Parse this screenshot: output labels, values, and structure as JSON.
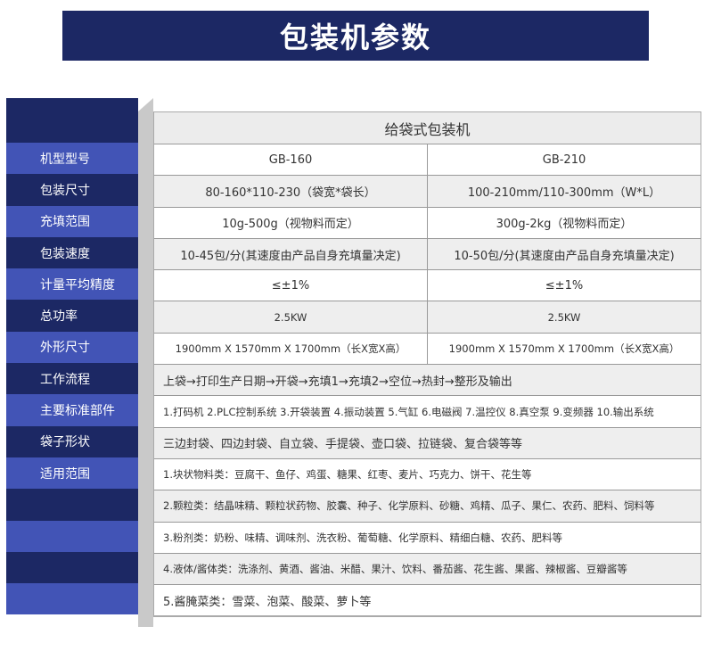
{
  "title": "包装机参数",
  "header": "给袋式包装机",
  "labels": [
    "机型型号",
    "包装尺寸",
    "充填范围",
    "包装速度",
    "计量平均精度",
    "总功率",
    "外形尺寸",
    "工作流程",
    "主要标准部件",
    "袋子形状",
    "适用范围",
    "",
    "",
    "",
    ""
  ],
  "rows": [
    {
      "a": "GB-160",
      "b": "GB-210"
    },
    {
      "a": "80-160*110-230（袋宽*袋长）",
      "b": "100-210mm/110-300mm（W*L）"
    },
    {
      "a": "10g-500g（视物料而定）",
      "b": "300g-2kg（视物料而定）"
    },
    {
      "a": "10-45包/分(其速度由产品自身充填量决定)",
      "b": "10-50包/分(其速度由产品自身充填量决定)"
    },
    {
      "a": "≤±1%",
      "b": "≤±1%"
    },
    {
      "a": "2.5KW",
      "b": "2.5KW"
    },
    {
      "a": "1900mm X 1570mm X 1700mm（长X宽X高）",
      "b": "1900mm X 1570mm X 1700mm（长X宽X高）"
    }
  ],
  "full_rows": [
    "上袋→打印生产日期→开袋→充填1→充填2→空位→热封→整形及输出",
    "1.打码机 2.PLC控制系统 3.开袋装置 4.振动装置 5.气缸 6.电磁阀 7.温控仪 8.真空泵 9.变频器 10.输出系统",
    "三边封袋、四边封袋、自立袋、手提袋、壶口袋、拉链袋、复合袋等等",
    "1.块状物料类：豆腐干、鱼仔、鸡蛋、糖果、红枣、麦片、巧克力、饼干、花生等",
    "2.颗粒类：结晶味精、颗粒状药物、胶囊、种子、化学原料、砂糖、鸡精、瓜子、果仁、农药、肥料、饲料等",
    "3.粉剂类：奶粉、味精、调味剂、洗衣粉、葡萄糖、化学原料、精细白糖、农药、肥料等",
    "4.液体/酱体类：洗涤剂、黄酒、酱油、米醋、果汁、饮料、番茄酱、花生酱、果酱、辣椒酱、豆瓣酱等",
    "5.酱腌菜类：雪菜、泡菜、酸菜、萝卜等"
  ]
}
